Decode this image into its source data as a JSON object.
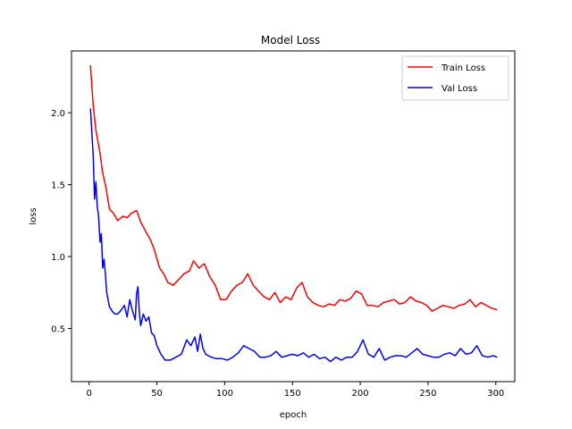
{
  "chart_data": {
    "type": "line",
    "title": "Model Loss",
    "xlabel": "epoch",
    "ylabel": "loss",
    "xlim": [
      -13,
      314
    ],
    "ylim": [
      0.13,
      2.43
    ],
    "xticks": [
      0,
      50,
      100,
      150,
      200,
      250,
      300
    ],
    "yticks": [
      0.5,
      1.0,
      1.5,
      2.0
    ],
    "xtick_labels": [
      "0",
      "50",
      "100",
      "150",
      "200",
      "250",
      "300"
    ],
    "ytick_labels": [
      "0.5",
      "1.0",
      "1.5",
      "2.0"
    ],
    "grid": false,
    "legend_position": "top-right",
    "series": [
      {
        "name": "Train Loss",
        "color": "#ff0000",
        "x": [
          1,
          3,
          5,
          8,
          10,
          12,
          15,
          18,
          21,
          25,
          28,
          31,
          35,
          38,
          42,
          45,
          48,
          52,
          55,
          58,
          62,
          66,
          70,
          74,
          77,
          81,
          85,
          89,
          93,
          97,
          101,
          105,
          109,
          113,
          117,
          121,
          125,
          129,
          133,
          137,
          141,
          145,
          149,
          153,
          157,
          161,
          165,
          169,
          173,
          177,
          181,
          185,
          189,
          193,
          197,
          201,
          205,
          209,
          213,
          217,
          221,
          225,
          229,
          233,
          237,
          241,
          245,
          249,
          253,
          257,
          261,
          265,
          269,
          273,
          277,
          281,
          285,
          289,
          293,
          297,
          301
        ],
        "values": [
          2.33,
          2.05,
          1.88,
          1.72,
          1.58,
          1.5,
          1.33,
          1.3,
          1.25,
          1.28,
          1.27,
          1.3,
          1.32,
          1.24,
          1.17,
          1.12,
          1.05,
          0.92,
          0.88,
          0.82,
          0.8,
          0.84,
          0.88,
          0.9,
          0.97,
          0.92,
          0.95,
          0.86,
          0.8,
          0.7,
          0.7,
          0.76,
          0.8,
          0.82,
          0.88,
          0.8,
          0.76,
          0.72,
          0.7,
          0.75,
          0.68,
          0.72,
          0.7,
          0.78,
          0.82,
          0.72,
          0.68,
          0.66,
          0.65,
          0.67,
          0.66,
          0.7,
          0.69,
          0.71,
          0.76,
          0.74,
          0.66,
          0.66,
          0.65,
          0.68,
          0.69,
          0.7,
          0.67,
          0.68,
          0.72,
          0.69,
          0.68,
          0.66,
          0.62,
          0.64,
          0.66,
          0.65,
          0.64,
          0.66,
          0.67,
          0.7,
          0.65,
          0.68,
          0.66,
          0.64,
          0.63
        ]
      },
      {
        "name": "Val Loss",
        "color": "#0000ff",
        "x": [
          1,
          3,
          4,
          5,
          6,
          7,
          8,
          9,
          10,
          11,
          12,
          13,
          15,
          17,
          19,
          21,
          23,
          26,
          28,
          30,
          32,
          34,
          35,
          36,
          37,
          38,
          40,
          42,
          44,
          46,
          48,
          50,
          53,
          56,
          60,
          64,
          68,
          72,
          75,
          78,
          80,
          82,
          84,
          86,
          90,
          94,
          98,
          102,
          106,
          110,
          114,
          118,
          122,
          126,
          130,
          134,
          138,
          142,
          146,
          150,
          154,
          158,
          162,
          166,
          170,
          174,
          178,
          182,
          186,
          190,
          194,
          198,
          202,
          206,
          210,
          214,
          218,
          222,
          226,
          230,
          234,
          238,
          242,
          246,
          250,
          254,
          258,
          262,
          266,
          270,
          274,
          278,
          282,
          286,
          290,
          294,
          298,
          301
        ],
        "values": [
          2.03,
          1.7,
          1.4,
          1.52,
          1.35,
          1.28,
          1.1,
          1.16,
          0.92,
          0.98,
          0.88,
          0.75,
          0.65,
          0.62,
          0.6,
          0.6,
          0.62,
          0.66,
          0.58,
          0.7,
          0.62,
          0.56,
          0.74,
          0.79,
          0.62,
          0.52,
          0.6,
          0.55,
          0.58,
          0.47,
          0.45,
          0.38,
          0.32,
          0.28,
          0.28,
          0.3,
          0.32,
          0.42,
          0.38,
          0.44,
          0.34,
          0.46,
          0.36,
          0.32,
          0.3,
          0.29,
          0.29,
          0.28,
          0.3,
          0.33,
          0.38,
          0.36,
          0.34,
          0.3,
          0.3,
          0.31,
          0.34,
          0.3,
          0.31,
          0.32,
          0.31,
          0.33,
          0.3,
          0.32,
          0.29,
          0.3,
          0.27,
          0.3,
          0.28,
          0.3,
          0.3,
          0.34,
          0.42,
          0.32,
          0.3,
          0.36,
          0.28,
          0.3,
          0.31,
          0.31,
          0.3,
          0.33,
          0.36,
          0.32,
          0.31,
          0.3,
          0.3,
          0.32,
          0.33,
          0.31,
          0.36,
          0.32,
          0.33,
          0.38,
          0.31,
          0.3,
          0.31,
          0.3
        ]
      }
    ]
  }
}
